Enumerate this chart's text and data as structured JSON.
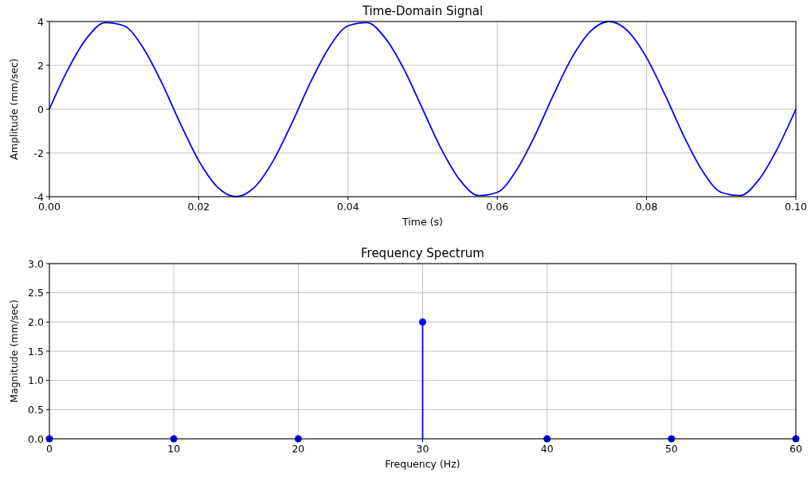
{
  "chart_data": [
    {
      "type": "line",
      "title": "Time-Domain Signal",
      "xlabel": "Time (s)",
      "ylabel": "Amplitude (mm/sec)",
      "x": [
        0,
        0.0025,
        0.005,
        0.0075,
        0.01,
        0.0125,
        0.015,
        0.0175,
        0.02,
        0.0225,
        0.025,
        0.0275,
        0.03,
        0.0325,
        0.035,
        0.0375,
        0.04,
        0.0425,
        0.045,
        0.0475,
        0.05,
        0.0525,
        0.055,
        0.0575,
        0.06,
        0.0625,
        0.065,
        0.0675,
        0.07,
        0.0725,
        0.075,
        0.0775,
        0.08,
        0.0825,
        0.085,
        0.0875,
        0.09,
        0.0925,
        0.095,
        0.0975,
        0.1
      ],
      "series": [
        {
          "color": "#0000ff",
          "values": [
            0,
            1.82,
            3.24,
            3.95,
            3.8,
            2.83,
            1.24,
            -0.63,
            -2.35,
            -3.56,
            -4,
            -3.56,
            -2.35,
            -0.63,
            1.24,
            2.83,
            3.8,
            3.95,
            3.24,
            1.82,
            0,
            -1.82,
            -3.24,
            -3.95,
            -3.8,
            -2.83,
            -1.24,
            0.63,
            2.35,
            3.56,
            4,
            3.56,
            2.35,
            0.63,
            -1.24,
            -2.83,
            -3.8,
            -3.95,
            -3.24,
            -1.82,
            0
          ]
        }
      ],
      "xlim": [
        0,
        0.1
      ],
      "xticks": [
        {
          "value": 0,
          "label": "0.00"
        },
        {
          "value": 0.02,
          "label": "0.02"
        },
        {
          "value": 0.04,
          "label": "0.04"
        },
        {
          "value": 0.06,
          "label": "0.06"
        },
        {
          "value": 0.08,
          "label": "0.08"
        },
        {
          "value": 0.1,
          "label": "0.10"
        }
      ],
      "ylim": [
        -4,
        4
      ],
      "yticks": [
        -4,
        -2,
        0,
        2,
        4
      ],
      "grid": true
    },
    {
      "type": "lollipop",
      "title": "Frequency Spectrum",
      "xlabel": "Frequency (Hz)",
      "ylabel": "Magnitude (mm/sec)",
      "x": [
        0,
        10,
        20,
        30,
        40,
        50,
        60
      ],
      "series": [
        {
          "color": "#0000ff",
          "values": [
            0,
            0,
            0,
            2,
            0,
            0,
            0
          ]
        }
      ],
      "marker": "circle",
      "xlim": [
        0,
        60
      ],
      "xticks": [
        0,
        10,
        20,
        30,
        40,
        50,
        60
      ],
      "ylim": [
        0,
        3
      ],
      "yticks": [
        {
          "value": 0,
          "label": "0.0"
        },
        {
          "value": 0.5,
          "label": "0.5"
        },
        {
          "value": 1,
          "label": "1.0"
        },
        {
          "value": 1.5,
          "label": "1.5"
        },
        {
          "value": 2,
          "label": "2.0"
        },
        {
          "value": 2.5,
          "label": "2.5"
        },
        {
          "value": 3,
          "label": "3.0"
        }
      ],
      "grid": true
    }
  ]
}
